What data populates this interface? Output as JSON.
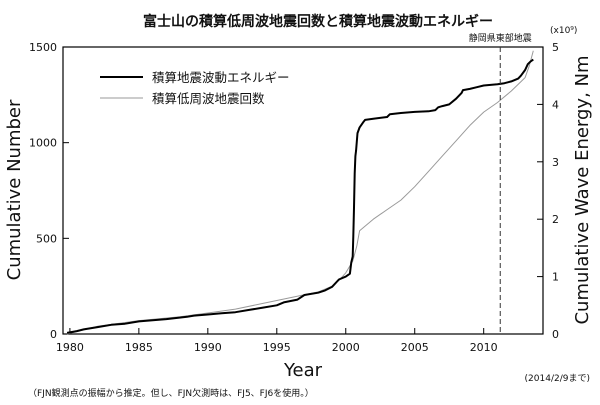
{
  "chart_data": {
    "type": "line",
    "title": "富士山の積算低周波地震回数と積算地震波動エネルギー",
    "xlabel": "Year",
    "ylabel_left": "Cumulative Number",
    "ylabel_right": "Cumulative Wave Energy, Nm",
    "right_multiplier": "(x10⁹)",
    "xlim": [
      1979.5,
      2014.3
    ],
    "ylim_left": [
      0,
      1500
    ],
    "ylim_right": [
      0,
      5
    ],
    "x_ticks": [
      1980,
      1985,
      1990,
      1995,
      2000,
      2005,
      2010
    ],
    "y_left_ticks": [
      0,
      500,
      1000,
      1500
    ],
    "y_right_ticks": [
      0,
      1,
      2,
      3,
      4,
      5
    ],
    "grid": false,
    "legend_position": "top-left",
    "event_marker": {
      "x": 2011.2,
      "label": "静岡県東部地震",
      "style": "dashed"
    },
    "series": [
      {
        "name": "積算地震波動エネルギー",
        "axis": "right",
        "color": "#000000",
        "width": 2,
        "x": [
          1979.8,
          1980.5,
          1981.0,
          1982.0,
          1983.0,
          1984.0,
          1985.0,
          1986.0,
          1987.0,
          1988.5,
          1989.0,
          1990.0,
          1991.0,
          1992.0,
          1993.0,
          1994.0,
          1995.0,
          1995.5,
          1996.5,
          1997.0,
          1998.0,
          1998.5,
          1999.0,
          1999.5,
          2000.0,
          2000.3,
          2000.4,
          2000.5,
          2000.55,
          2000.6,
          2000.65,
          2000.7,
          2000.75,
          2000.85,
          2001.0,
          2001.3,
          2001.4,
          2002.0,
          2003.0,
          2003.2,
          2004.0,
          2005.0,
          2006.0,
          2006.5,
          2006.7,
          2007.0,
          2007.5,
          2008.0,
          2008.4,
          2008.5,
          2009.0,
          2009.5,
          2010.0,
          2011.0,
          2011.5,
          2012.0,
          2012.5,
          2012.7,
          2013.0,
          2013.2,
          2013.4,
          2013.6
        ],
        "values": [
          0.02,
          0.05,
          0.08,
          0.12,
          0.16,
          0.18,
          0.22,
          0.24,
          0.26,
          0.3,
          0.32,
          0.34,
          0.36,
          0.38,
          0.42,
          0.46,
          0.5,
          0.55,
          0.6,
          0.68,
          0.72,
          0.76,
          0.82,
          0.95,
          1.0,
          1.05,
          1.25,
          1.35,
          1.7,
          2.2,
          2.8,
          3.1,
          3.2,
          3.5,
          3.6,
          3.7,
          3.73,
          3.75,
          3.78,
          3.83,
          3.85,
          3.87,
          3.88,
          3.9,
          3.95,
          3.97,
          4.0,
          4.1,
          4.2,
          4.25,
          4.27,
          4.3,
          4.33,
          4.35,
          4.37,
          4.4,
          4.45,
          4.5,
          4.6,
          4.7,
          4.75,
          4.78
        ]
      },
      {
        "name": "積算低周波地震回数",
        "axis": "left",
        "color": "#9a9a9a",
        "width": 1,
        "x": [
          1979.8,
          1982.0,
          1985.0,
          1988.0,
          1990.0,
          1992.0,
          1994.0,
          1996.0,
          1998.0,
          1999.0,
          1999.5,
          2000.0,
          2000.5,
          2000.8,
          2001.0,
          2002.0,
          2003.0,
          2004.0,
          2005.0,
          2006.0,
          2007.0,
          2008.0,
          2009.0,
          2010.0,
          2011.0,
          2012.0,
          2013.0,
          2013.3,
          2013.6
        ],
        "values": [
          0,
          40,
          70,
          90,
          110,
          130,
          160,
          190,
          220,
          250,
          280,
          320,
          380,
          460,
          540,
          600,
          650,
          700,
          770,
          850,
          930,
          1010,
          1090,
          1160,
          1210,
          1270,
          1340,
          1400,
          1480
        ]
      }
    ],
    "footnote": "（FJN観測点の振幅から推定。但し、FJN欠測時は、FJ5、FJ6を使用。）",
    "date_note": "(2014/2/9まで)"
  }
}
